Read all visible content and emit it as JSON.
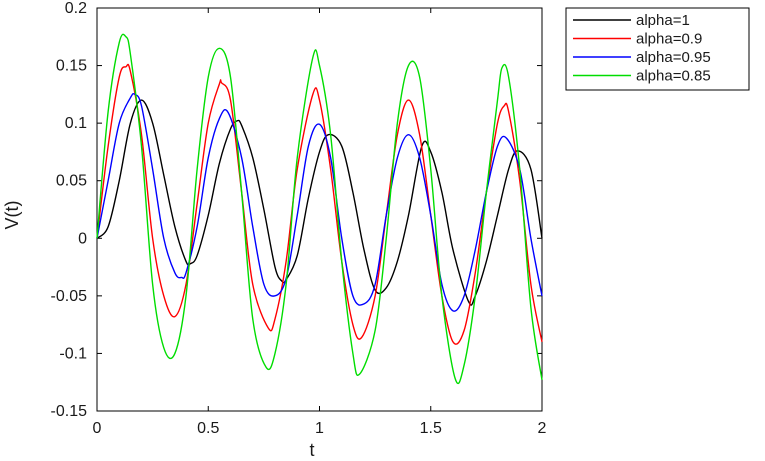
{
  "chart_data": {
    "type": "line",
    "title": "",
    "xlabel": "t",
    "ylabel": "V(t)",
    "xlim": [
      0,
      2
    ],
    "ylim": [
      -0.15,
      0.2
    ],
    "xticks": [
      0,
      0.5,
      1,
      1.5,
      2
    ],
    "xtick_labels": [
      "0",
      "0.5",
      "1",
      "1.5",
      "2"
    ],
    "yticks": [
      -0.15,
      -0.1,
      -0.05,
      0,
      0.05,
      0.1,
      0.15,
      0.2
    ],
    "ytick_labels": [
      "-0.15",
      "-0.1",
      "-0.05",
      "0",
      "0.05",
      "0.1",
      "0.15",
      "0.2"
    ],
    "grid": false,
    "legend_position": "outside-top-right",
    "series": [
      {
        "name": "alpha=1",
        "color": "#000000",
        "x": [
          0,
          0.05,
          0.1,
          0.15,
          0.2,
          0.25,
          0.3,
          0.35,
          0.4,
          0.42,
          0.45,
          0.5,
          0.55,
          0.6,
          0.63,
          0.65,
          0.7,
          0.75,
          0.8,
          0.83,
          0.85,
          0.9,
          0.95,
          1.0,
          1.04,
          1.1,
          1.15,
          1.2,
          1.25,
          1.3,
          1.35,
          1.4,
          1.46,
          1.5,
          1.55,
          1.6,
          1.67,
          1.7,
          1.75,
          1.8,
          1.85,
          1.89,
          1.95,
          2.0
        ],
        "y": [
          0,
          0.01,
          0.05,
          0.1,
          0.12,
          0.1,
          0.055,
          0.01,
          -0.02,
          -0.022,
          -0.015,
          0.02,
          0.065,
          0.095,
          0.102,
          0.098,
          0.07,
          0.025,
          -0.025,
          -0.037,
          -0.036,
          -0.015,
          0.035,
          0.075,
          0.09,
          0.08,
          0.04,
          -0.01,
          -0.045,
          -0.043,
          -0.02,
          0.02,
          0.08,
          0.075,
          0.04,
          -0.01,
          -0.055,
          -0.05,
          -0.02,
          0.02,
          0.06,
          0.076,
          0.06,
          0.0
        ]
      },
      {
        "name": "alpha=0.9",
        "color": "#ff0000",
        "x": [
          0,
          0.05,
          0.1,
          0.13,
          0.15,
          0.2,
          0.25,
          0.3,
          0.35,
          0.4,
          0.45,
          0.5,
          0.55,
          0.56,
          0.6,
          0.65,
          0.7,
          0.77,
          0.8,
          0.85,
          0.9,
          0.97,
          1.0,
          1.05,
          1.1,
          1.15,
          1.19,
          1.25,
          1.3,
          1.35,
          1.4,
          1.45,
          1.5,
          1.55,
          1.6,
          1.65,
          1.7,
          1.75,
          1.8,
          1.83,
          1.85,
          1.9,
          1.95,
          2.0
        ],
        "y": [
          0,
          0.08,
          0.14,
          0.149,
          0.145,
          0.09,
          0.0,
          -0.05,
          -0.068,
          -0.04,
          0.03,
          0.1,
          0.134,
          0.135,
          0.12,
          0.04,
          -0.04,
          -0.078,
          -0.07,
          -0.02,
          0.06,
          0.125,
          0.12,
          0.06,
          -0.02,
          -0.075,
          -0.086,
          -0.05,
          0.02,
          0.09,
          0.12,
          0.09,
          0.02,
          -0.05,
          -0.09,
          -0.08,
          -0.03,
          0.04,
          0.1,
          0.115,
          0.11,
          0.05,
          -0.04,
          -0.09
        ]
      },
      {
        "name": "alpha=0.95",
        "color": "#0000ff",
        "x": [
          0,
          0.05,
          0.1,
          0.15,
          0.17,
          0.2,
          0.25,
          0.3,
          0.35,
          0.38,
          0.4,
          0.45,
          0.5,
          0.55,
          0.59,
          0.65,
          0.7,
          0.75,
          0.8,
          0.85,
          0.9,
          0.95,
          1.0,
          1.05,
          1.1,
          1.15,
          1.2,
          1.25,
          1.3,
          1.35,
          1.4,
          1.45,
          1.5,
          1.55,
          1.6,
          1.65,
          1.7,
          1.75,
          1.8,
          1.84,
          1.9,
          1.95,
          2.0
        ],
        "y": [
          0,
          0.05,
          0.1,
          0.122,
          0.125,
          0.115,
          0.06,
          0.0,
          -0.03,
          -0.034,
          -0.03,
          0.01,
          0.07,
          0.104,
          0.109,
          0.07,
          0.01,
          -0.04,
          -0.05,
          -0.035,
          0.02,
          0.08,
          0.099,
          0.07,
          0.0,
          -0.05,
          -0.057,
          -0.04,
          0.02,
          0.07,
          0.09,
          0.07,
          0.02,
          -0.04,
          -0.063,
          -0.05,
          -0.01,
          0.04,
          0.08,
          0.087,
          0.06,
          0.0,
          -0.05
        ]
      },
      {
        "name": "alpha=0.85",
        "color": "#00dd00",
        "x": [
          0,
          0.05,
          0.1,
          0.13,
          0.15,
          0.2,
          0.25,
          0.3,
          0.35,
          0.4,
          0.45,
          0.5,
          0.55,
          0.6,
          0.65,
          0.7,
          0.76,
          0.8,
          0.85,
          0.9,
          0.97,
          1.0,
          1.05,
          1.1,
          1.15,
          1.18,
          1.25,
          1.3,
          1.35,
          1.4,
          1.45,
          1.5,
          1.55,
          1.61,
          1.65,
          1.7,
          1.75,
          1.8,
          1.82,
          1.85,
          1.9,
          1.95,
          2.0
        ],
        "y": [
          0,
          0.11,
          0.17,
          0.175,
          0.16,
          0.08,
          -0.04,
          -0.095,
          -0.1,
          -0.05,
          0.06,
          0.14,
          0.165,
          0.14,
          0.04,
          -0.07,
          -0.112,
          -0.1,
          -0.04,
          0.07,
          0.157,
          0.15,
          0.09,
          -0.02,
          -0.1,
          -0.118,
          -0.08,
          0.0,
          0.1,
          0.15,
          0.14,
          0.06,
          -0.05,
          -0.122,
          -0.11,
          -0.05,
          0.04,
          0.12,
          0.148,
          0.14,
          0.06,
          -0.06,
          -0.123
        ]
      }
    ]
  }
}
